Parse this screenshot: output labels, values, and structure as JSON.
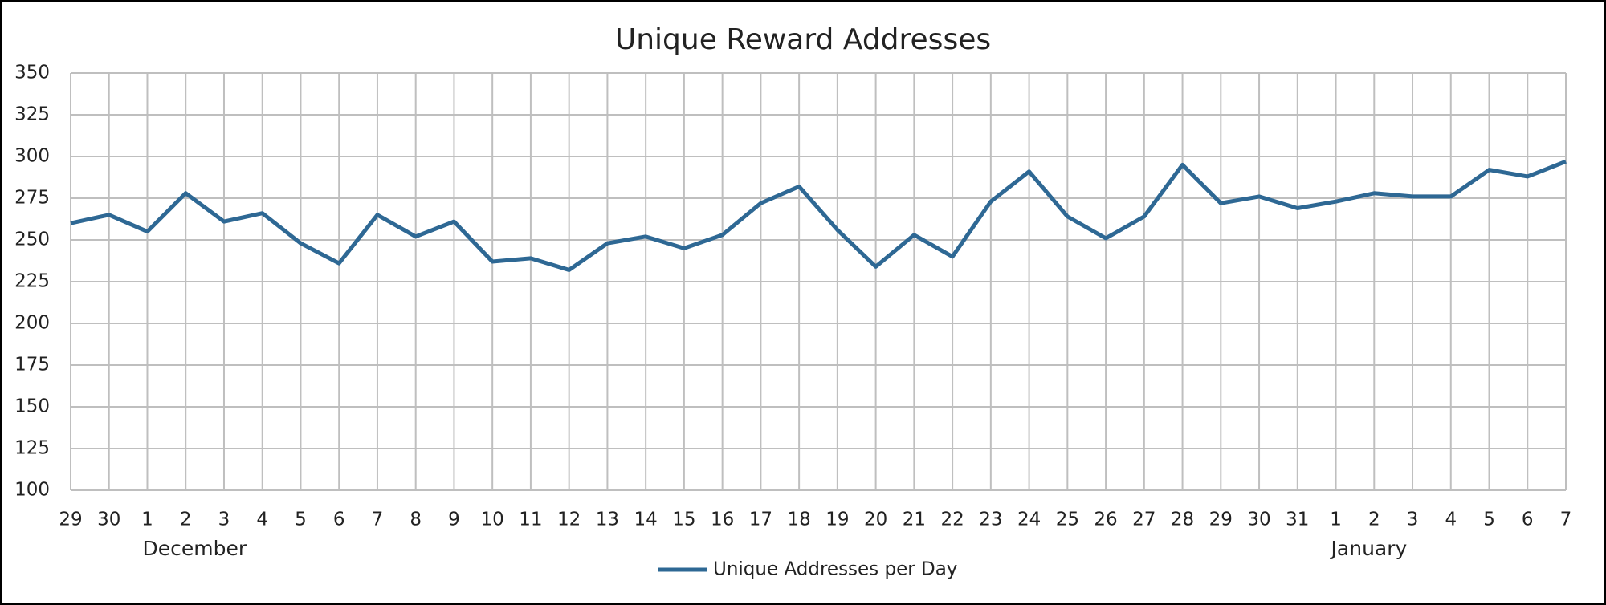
{
  "chart_data": {
    "type": "line",
    "title": "Unique Reward Addresses",
    "categories": [
      "29",
      "30",
      "1",
      "2",
      "3",
      "4",
      "5",
      "6",
      "7",
      "8",
      "9",
      "10",
      "11",
      "12",
      "13",
      "14",
      "15",
      "16",
      "17",
      "18",
      "19",
      "20",
      "21",
      "22",
      "23",
      "24",
      "25",
      "26",
      "27",
      "28",
      "29",
      "30",
      "31",
      "1",
      "2",
      "3",
      "4",
      "5",
      "6",
      "7"
    ],
    "month_labels": [
      null,
      null,
      "December",
      null,
      null,
      null,
      null,
      null,
      null,
      null,
      null,
      null,
      null,
      null,
      null,
      null,
      null,
      null,
      null,
      null,
      null,
      null,
      null,
      null,
      null,
      null,
      null,
      null,
      null,
      null,
      null,
      null,
      null,
      "January",
      null,
      null,
      null,
      null,
      null,
      null
    ],
    "series": [
      {
        "name": "Unique Addresses per Day",
        "color": "#2e6894",
        "values": [
          260,
          265,
          255,
          278,
          261,
          266,
          248,
          236,
          265,
          252,
          261,
          237,
          239,
          232,
          248,
          252,
          245,
          253,
          272,
          282,
          256,
          234,
          253,
          240,
          273,
          291,
          264,
          251,
          264,
          295,
          272,
          276,
          269,
          273,
          278,
          276,
          276,
          292,
          288,
          297
        ]
      }
    ],
    "ylim": [
      100,
      350
    ],
    "yticks": [
      100,
      125,
      150,
      175,
      200,
      225,
      250,
      275,
      300,
      325,
      350
    ],
    "grid": true,
    "legend": "bottom"
  }
}
